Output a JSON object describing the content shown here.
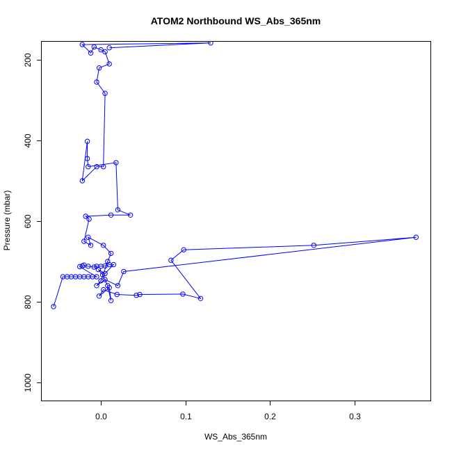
{
  "chart_data": {
    "type": "line",
    "title": "ATOM2 Northbound WS_Abs_365nm",
    "xlabel": "WS_Abs_365nm",
    "ylabel": "Pressure (mbar)",
    "xlim": [
      -0.07,
      0.39
    ],
    "ylim": [
      1045,
      155
    ],
    "y_reversed": true,
    "x_ticks": [
      0.0,
      0.1,
      0.2,
      0.3
    ],
    "x_tick_labels": [
      "0.0",
      "0.1",
      "0.2",
      "0.3"
    ],
    "y_ticks": [
      200,
      400,
      600,
      800,
      1000
    ],
    "y_tick_labels": [
      "200",
      "400",
      "600",
      "800",
      "1000"
    ],
    "grid": false,
    "legend": "none",
    "marker": "open-circle",
    "line_color": "#0000ff",
    "series": [
      {
        "values": [
          [
            -0.056,
            812
          ],
          [
            -0.045,
            738
          ],
          [
            -0.04,
            738
          ],
          [
            -0.035,
            738
          ],
          [
            -0.03,
            738
          ],
          [
            -0.025,
            738
          ],
          [
            -0.02,
            738
          ],
          [
            -0.015,
            738
          ],
          [
            -0.01,
            738
          ],
          [
            -0.005,
            738
          ],
          [
            -0.025,
            713
          ],
          [
            -0.022,
            711
          ],
          [
            -0.02,
            709
          ],
          [
            -0.015,
            712
          ],
          [
            -0.008,
            714
          ],
          [
            -0.005,
            712
          ],
          [
            0.0,
            712
          ],
          [
            0.005,
            711
          ],
          [
            0.01,
            708
          ],
          [
            0.015,
            708
          ],
          [
            0.005,
            730
          ],
          [
            -0.003,
            720
          ],
          [
            0.002,
            733
          ],
          [
            0.008,
            760
          ],
          [
            0.012,
            797
          ],
          [
            0.01,
            765
          ],
          [
            -0.002,
            786
          ],
          [
            0.003,
            770
          ],
          [
            0.019,
            782
          ],
          [
            0.042,
            784
          ],
          [
            0.046,
            782
          ],
          [
            0.097,
            781
          ],
          [
            0.118,
            792
          ],
          [
            0.083,
            697
          ],
          [
            0.098,
            671
          ],
          [
            0.252,
            660
          ],
          [
            0.373,
            640
          ],
          [
            0.027,
            725
          ],
          [
            0.02,
            760
          ],
          [
            0.005,
            745
          ],
          [
            -0.005,
            760
          ],
          [
            0.0,
            748
          ],
          [
            0.008,
            700
          ],
          [
            0.012,
            680
          ],
          [
            0.003,
            660
          ],
          [
            -0.015,
            640
          ],
          [
            -0.012,
            660
          ],
          [
            -0.02,
            650
          ],
          [
            -0.014,
            595
          ],
          [
            -0.018,
            588
          ],
          [
            0.012,
            585
          ],
          [
            0.035,
            585
          ],
          [
            0.02,
            572
          ],
          [
            0.018,
            455
          ],
          [
            -0.015,
            465
          ],
          [
            -0.016,
            445
          ],
          [
            -0.016,
            402
          ],
          [
            -0.022,
            500
          ],
          [
            -0.005,
            465
          ],
          [
            0.003,
            465
          ],
          [
            0.005,
            283
          ],
          [
            -0.005,
            255
          ],
          [
            -0.002,
            220
          ],
          [
            0.01,
            210
          ],
          [
            0.005,
            180
          ],
          [
            0.0,
            175
          ],
          [
            -0.008,
            168
          ],
          [
            -0.012,
            183
          ],
          [
            -0.022,
            162
          ],
          [
            0.13,
            158
          ],
          [
            0.01,
            170
          ]
        ]
      }
    ]
  }
}
